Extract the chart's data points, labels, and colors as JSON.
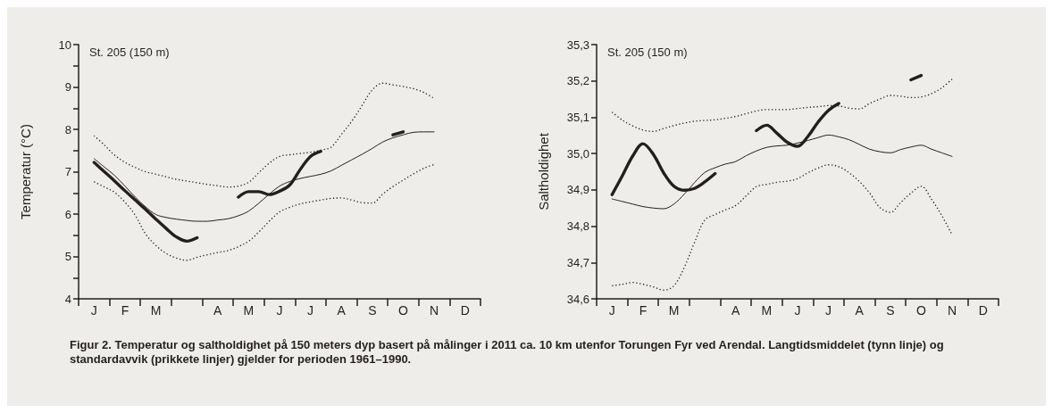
{
  "chart_data": [
    {
      "type": "line",
      "ylabel": "Temperatur (°C)",
      "annotations": [
        "St. 205 (150 m)"
      ],
      "categories": [
        null,
        "J",
        null,
        null,
        "F",
        null,
        null,
        "M",
        null,
        null,
        null,
        null,
        null,
        "A",
        null,
        null,
        "M",
        null,
        null,
        "J",
        null,
        null,
        "J",
        null,
        null,
        "A",
        null,
        null,
        "S",
        null,
        null,
        "O",
        null,
        null,
        "N",
        null,
        null,
        "D",
        null
      ],
      "ylim": [
        4,
        10
      ],
      "yticks": [
        4,
        {
          "value": 4.5,
          "label": null
        },
        5,
        {
          "value": 5.5,
          "label": null
        },
        6,
        {
          "value": 6.5,
          "label": null
        },
        7,
        {
          "value": 7.5,
          "label": null
        },
        8,
        {
          "value": 8.5,
          "label": null
        },
        9,
        {
          "value": 9.5,
          "label": null
        },
        10
      ],
      "grid": false,
      "marker": "none",
      "series": [
        {
          "color": "#231f20",
          "line_style": "solid",
          "values": [
            null,
            7.31,
            7.11,
            6.91,
            6.66,
            6.4,
            6.17,
            5.99,
            5.92,
            5.88,
            5.85,
            5.83,
            5.83,
            5.86,
            5.89,
            5.96,
            6.07,
            6.26,
            6.47,
            6.66,
            6.77,
            6.84,
            6.89,
            6.94,
            7.02,
            7.15,
            7.28,
            7.41,
            7.55,
            7.7,
            7.8,
            7.87,
            7.93,
            7.94,
            7.94,
            null,
            null,
            null,
            null
          ]
        },
        {
          "color": "#231f20",
          "line_style": "dotted",
          "values": [
            null,
            7.85,
            7.63,
            7.39,
            7.22,
            7.1,
            7.0,
            6.94,
            6.88,
            6.82,
            6.78,
            6.74,
            6.7,
            6.67,
            6.64,
            6.66,
            6.75,
            6.98,
            7.2,
            7.36,
            7.4,
            7.43,
            7.46,
            7.51,
            7.58,
            7.88,
            8.19,
            8.56,
            8.93,
            9.09,
            9.05,
            9.01,
            8.96,
            8.87,
            8.73,
            null,
            null,
            null,
            null
          ]
        },
        {
          "color": "#231f20",
          "line_style": "dotted",
          "values": [
            null,
            6.76,
            6.64,
            6.51,
            6.28,
            5.97,
            5.53,
            5.26,
            5.07,
            4.96,
            4.91,
            4.98,
            5.04,
            5.09,
            5.14,
            5.23,
            5.36,
            5.58,
            5.83,
            6.05,
            6.16,
            6.24,
            6.29,
            6.33,
            6.37,
            6.38,
            6.33,
            6.27,
            6.26,
            6.47,
            6.65,
            6.8,
            6.95,
            7.08,
            7.17,
            null,
            null,
            null,
            null
          ]
        },
        {
          "color": "#231f20",
          "line_style": "solid",
          "values": [
            null,
            7.22,
            7.0,
            6.78,
            6.55,
            6.33,
            6.11,
            5.88,
            5.66,
            5.46,
            5.36,
            5.44,
            null,
            null,
            null,
            6.4,
            6.53,
            6.53,
            6.46,
            6.54,
            6.69,
            7.05,
            7.36,
            7.48,
            null,
            null,
            null,
            null,
            null,
            null,
            7.87,
            7.94,
            null,
            null,
            null,
            null,
            null,
            null,
            null
          ]
        }
      ]
    },
    {
      "type": "line",
      "ylabel": "Saltholdighet",
      "annotations": [
        "St. 205 (150 m)",
        "Figur 2. Temperatur og saltholdighet på 150 meters dyp basert på målinger i 2011 ca. 10 km utenfor Torungen Fyr ved Arendal. Langtidsmiddelet (tynn linje) og standardavvik (prikkete linjer) gjelder for perioden 1961–1990."
      ],
      "categories": [
        null,
        "J",
        null,
        null,
        "F",
        null,
        null,
        "M",
        null,
        null,
        null,
        null,
        null,
        "A",
        null,
        null,
        "M",
        null,
        null,
        "J",
        null,
        null,
        "J",
        null,
        null,
        "A",
        null,
        null,
        "S",
        null,
        null,
        "O",
        null,
        null,
        "N",
        null,
        null,
        "D",
        null
      ],
      "ylim": [
        34.6,
        35.3
      ],
      "yticks": [
        {
          "value": 34.6,
          "label": "34,6"
        },
        {
          "value": 34.7,
          "label": "34,7"
        },
        {
          "value": 34.8,
          "label": "34,8"
        },
        {
          "value": 34.9,
          "label": "34,9"
        },
        {
          "value": 35.0,
          "label": "35,0"
        },
        {
          "value": 35.1,
          "label": "35,1"
        },
        {
          "value": 35.2,
          "label": "35,2"
        },
        {
          "value": 35.3,
          "label": "35,3"
        }
      ],
      "grid": false,
      "marker": "none",
      "series": [
        {
          "color": "#231f20",
          "line_style": "solid",
          "values": [
            null,
            34.875,
            34.868,
            34.861,
            34.854,
            34.85,
            34.848,
            34.861,
            34.888,
            34.92,
            34.948,
            34.961,
            34.971,
            34.978,
            34.994,
            35.007,
            35.017,
            35.021,
            35.023,
            35.029,
            35.036,
            35.044,
            35.051,
            35.046,
            35.038,
            35.025,
            35.012,
            35.005,
            35.002,
            35.011,
            35.018,
            35.023,
            35.012,
            35.002,
            34.992,
            null,
            null,
            null,
            null
          ]
        },
        {
          "color": "#231f20",
          "line_style": "dotted",
          "values": [
            null,
            35.114,
            35.092,
            35.076,
            35.065,
            35.061,
            35.069,
            35.077,
            35.084,
            35.089,
            35.091,
            35.093,
            35.097,
            35.102,
            35.11,
            35.117,
            35.121,
            35.121,
            35.121,
            35.124,
            35.127,
            35.129,
            35.132,
            35.131,
            35.125,
            35.123,
            35.138,
            35.15,
            35.16,
            35.158,
            35.154,
            35.156,
            35.165,
            35.181,
            35.205,
            null,
            null,
            null,
            null
          ]
        },
        {
          "color": "#231f20",
          "line_style": "dotted",
          "values": [
            null,
            34.636,
            34.64,
            34.645,
            34.64,
            34.633,
            34.624,
            34.636,
            34.686,
            34.755,
            34.817,
            34.832,
            34.845,
            34.857,
            34.883,
            34.909,
            34.915,
            34.921,
            34.924,
            34.931,
            34.947,
            34.96,
            34.969,
            34.964,
            34.947,
            34.923,
            34.891,
            34.851,
            34.838,
            34.865,
            34.891,
            34.91,
            34.874,
            34.829,
            34.776,
            null,
            null,
            null,
            null
          ]
        },
        {
          "color": "#231f20",
          "line_style": "solid",
          "values": [
            null,
            34.887,
            34.939,
            34.993,
            35.027,
            34.998,
            34.947,
            34.91,
            34.899,
            34.904,
            34.922,
            34.945,
            null,
            null,
            null,
            35.063,
            35.078,
            35.056,
            35.031,
            35.02,
            35.047,
            35.087,
            35.119,
            35.138,
            null,
            null,
            null,
            null,
            null,
            null,
            35.203,
            35.215,
            null,
            null,
            null,
            null,
            null,
            null,
            null
          ]
        }
      ]
    }
  ]
}
